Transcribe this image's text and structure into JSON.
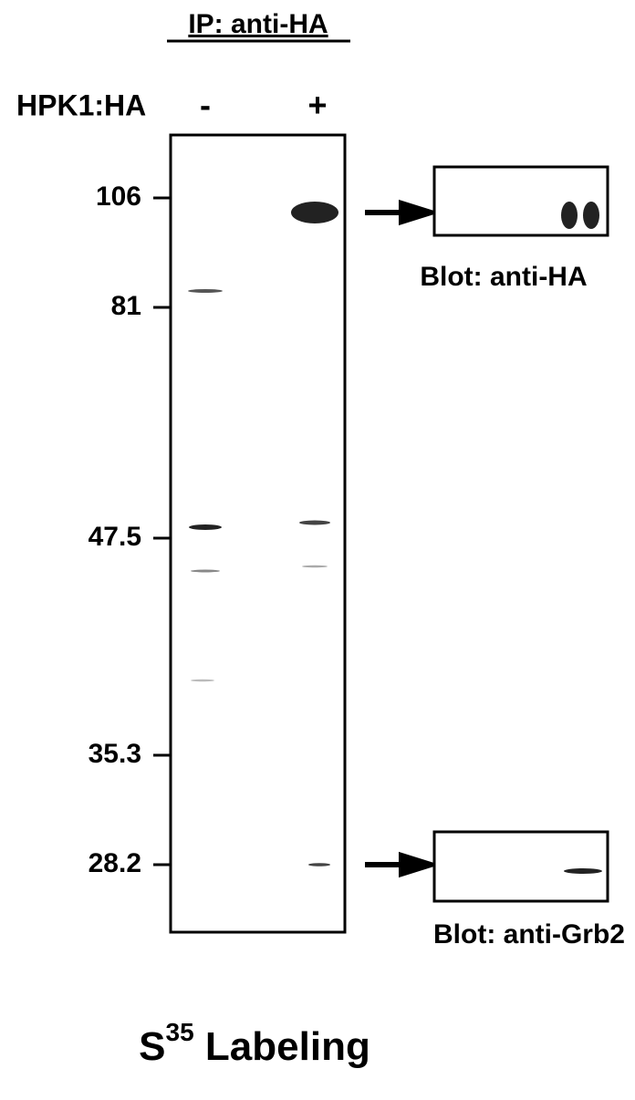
{
  "title": "IP: anti-HA",
  "lane_header": {
    "label": "HPK1:HA",
    "lanes": [
      "-",
      "+"
    ]
  },
  "markers": [
    "106",
    "81",
    "47.5",
    "35.3",
    "28.2"
  ],
  "blots": [
    {
      "label": "Blot: anti-HA"
    },
    {
      "label": "Blot: anti-Grb2"
    }
  ],
  "footer": {
    "symbol": "S",
    "superscript": "35",
    "text": "Labeling"
  }
}
